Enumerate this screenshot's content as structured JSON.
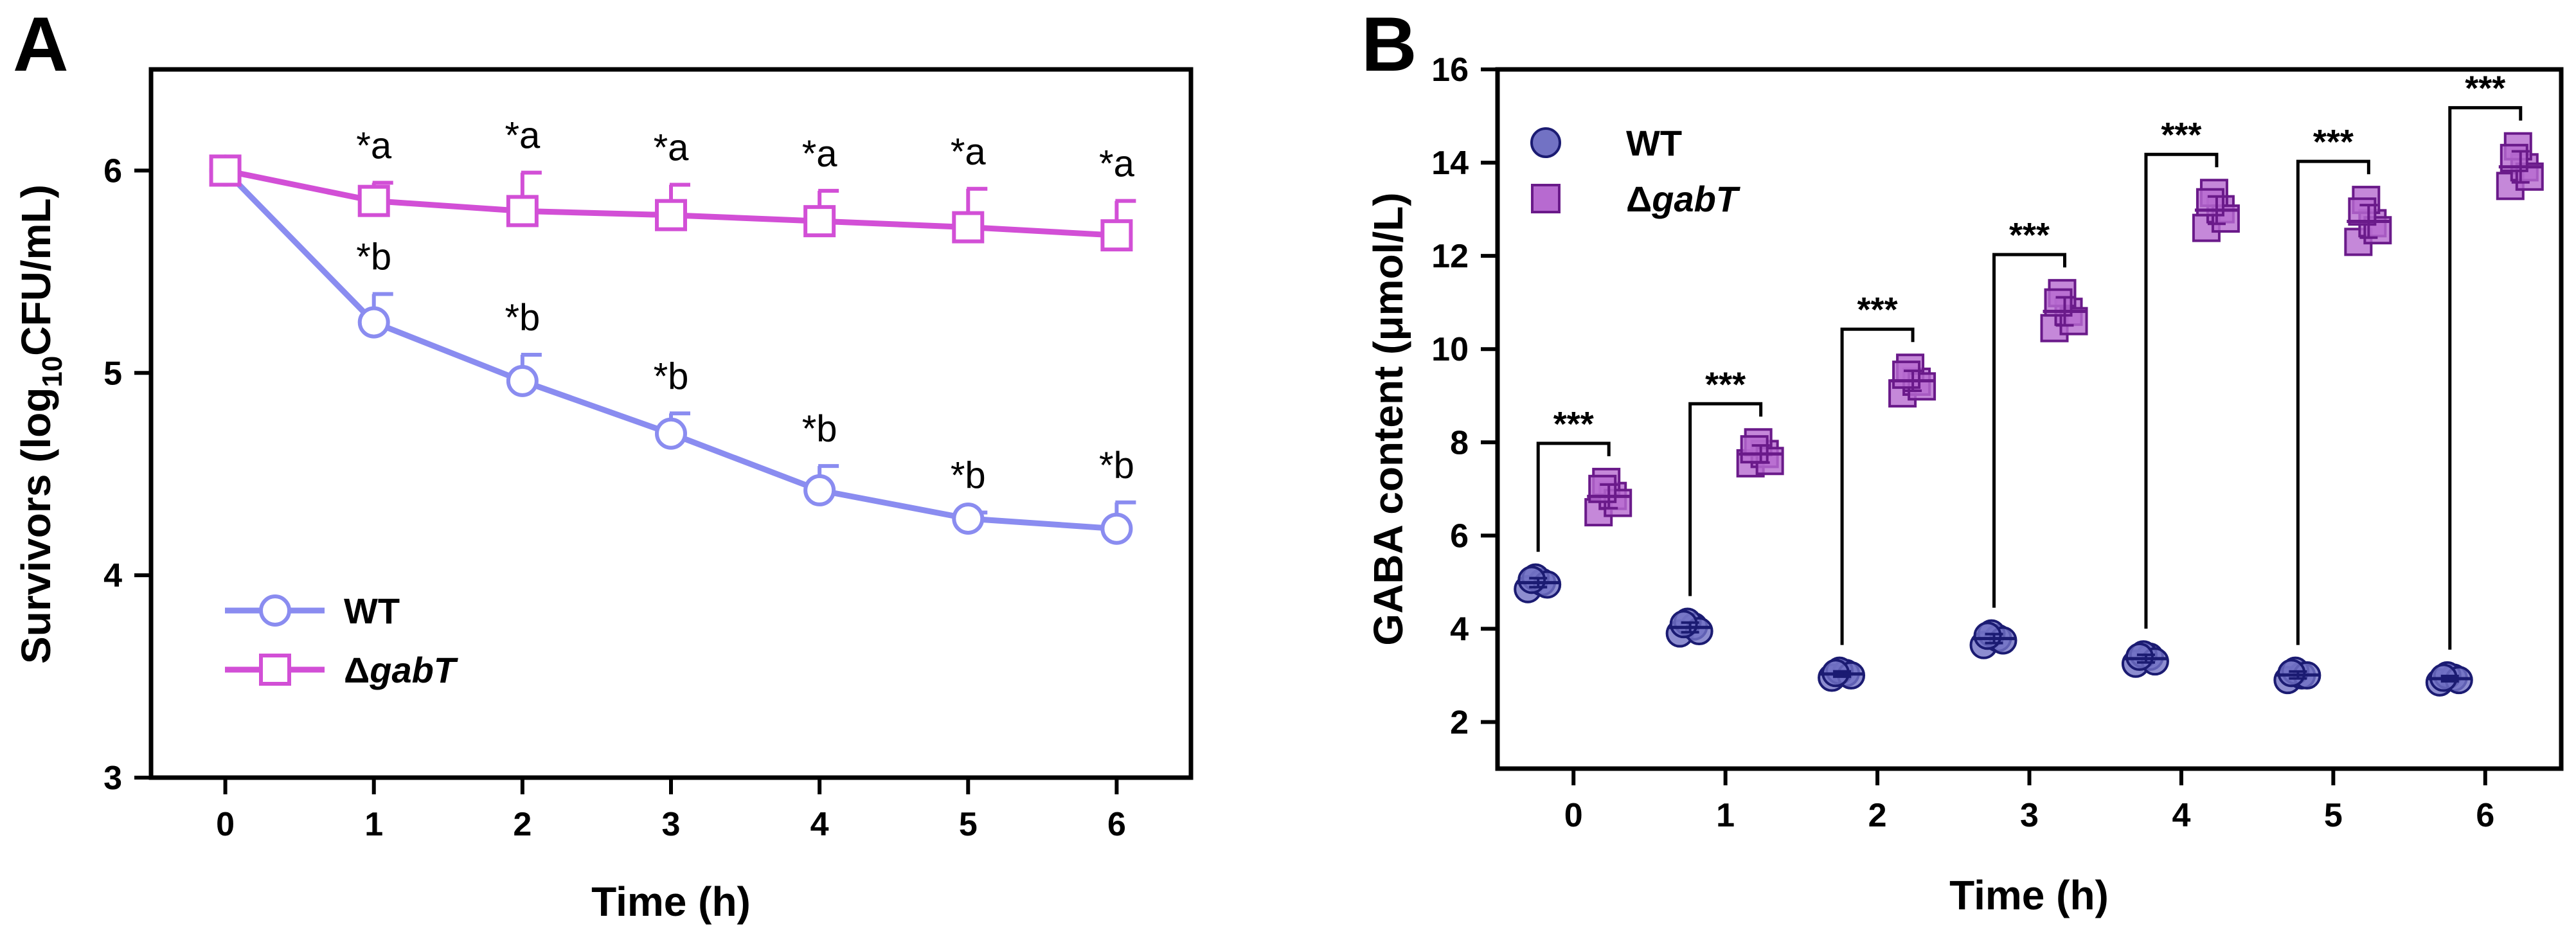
{
  "chart_data": [
    {
      "panel": "A",
      "type": "line",
      "xlabel": "Time (h)",
      "ylabel": {
        "pre": "Survivors (log",
        "sub": "10",
        "post": "CFU/mL)"
      },
      "xlim": [
        -0.5,
        6.5
      ],
      "ylim": [
        3,
        6.5
      ],
      "xticks": [
        0,
        1,
        2,
        3,
        4,
        5,
        6
      ],
      "yticks": [
        3,
        4,
        5,
        6
      ],
      "series": [
        {
          "name": "WT",
          "color": "#8a8cf0",
          "marker": "circle",
          "x": [
            0,
            1,
            2,
            3,
            4,
            5,
            6
          ],
          "y": [
            6.0,
            5.25,
            4.96,
            4.7,
            4.42,
            4.28,
            4.23
          ],
          "err": [
            0,
            0.14,
            0.13,
            0.1,
            0.12,
            0.03,
            0.13
          ],
          "annotations": [
            "",
            "*b",
            "*b",
            "*b",
            "*b",
            "*b",
            "*b"
          ]
        },
        {
          "name": "ΔgabT",
          "legend_prefix": "Δ",
          "legend_italic": "gabT",
          "color": "#d24fd6",
          "marker": "square",
          "x": [
            0,
            1,
            2,
            3,
            4,
            5,
            6
          ],
          "y": [
            6.0,
            5.85,
            5.8,
            5.78,
            5.75,
            5.72,
            5.68
          ],
          "err": [
            0,
            0.09,
            0.19,
            0.15,
            0.15,
            0.19,
            0.17
          ],
          "annotations": [
            "",
            "*a",
            "*a",
            "*a",
            "*a",
            "*a",
            "*a"
          ]
        }
      ],
      "legend": "bottom-left"
    },
    {
      "panel": "B",
      "type": "scatter",
      "xlabel": "Time (h)",
      "ylabel": "GABA content (μmol/L)",
      "ylim": [
        1,
        16
      ],
      "yticks": [
        2,
        4,
        6,
        8,
        10,
        12,
        14,
        16
      ],
      "categories": [
        "0",
        "1",
        "2",
        "3",
        "4",
        "5",
        "6"
      ],
      "series": [
        {
          "name": "WT",
          "color": "#7272c4",
          "edge": "#1b1b72",
          "marker": "circle",
          "points": [
            [
              4.85,
              5.0,
              5.1,
              4.95,
              5.05
            ],
            [
              3.9,
              4.05,
              4.15,
              3.95,
              4.1
            ],
            [
              2.95,
              3.05,
              3.1,
              3.0,
              3.05
            ],
            [
              3.65,
              3.8,
              3.9,
              3.75,
              3.85
            ],
            [
              3.25,
              3.4,
              3.45,
              3.3,
              3.4
            ],
            [
              2.9,
              3.0,
              3.1,
              3.0,
              3.05
            ],
            [
              2.85,
              2.95,
              3.0,
              2.9,
              2.95
            ]
          ]
        },
        {
          "name": "ΔgabT",
          "legend_prefix": "Δ",
          "legend_italic": "gabT",
          "color": "#b76ad0",
          "edge": "#6a1a8a",
          "marker": "square",
          "points": [
            [
              6.5,
              6.85,
              7.15,
              6.7,
              7.0
            ],
            [
              7.55,
              7.75,
              8.0,
              7.6,
              7.85
            ],
            [
              9.05,
              9.3,
              9.6,
              9.2,
              9.45
            ],
            [
              10.45,
              10.8,
              11.2,
              10.6,
              11.0
            ],
            [
              12.6,
              13.0,
              13.35,
              12.8,
              13.15
            ],
            [
              12.3,
              12.7,
              13.2,
              12.55,
              12.95
            ],
            [
              13.5,
              13.9,
              14.35,
              13.7,
              14.1
            ]
          ]
        }
      ],
      "significance": [
        "***",
        "***",
        "***",
        "***",
        "***",
        "***",
        "***"
      ],
      "legend": "top-left"
    }
  ]
}
